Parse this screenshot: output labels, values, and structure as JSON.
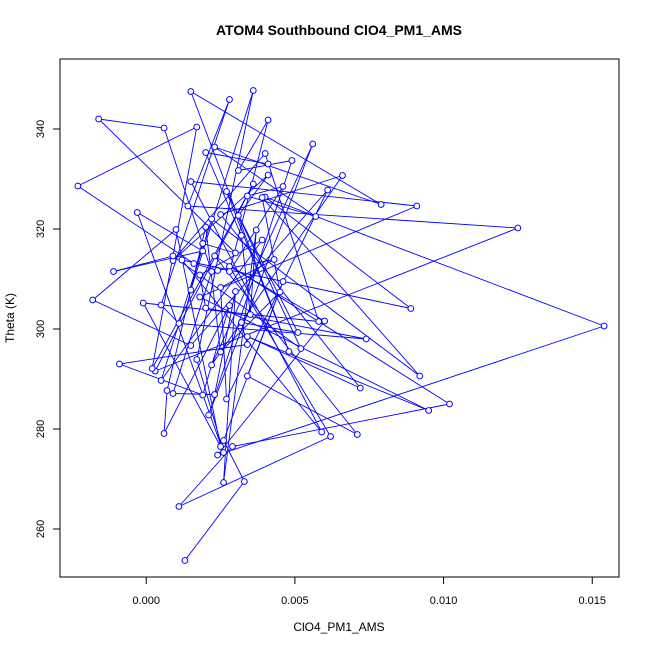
{
  "chart_data": {
    "type": "line",
    "style": "points-and-lines",
    "title": "ATOM4 Southbound ClO4_PM1_AMS",
    "xlabel": "ClO4_PM1_AMS",
    "ylabel": "Theta (K)",
    "xlim": [
      -0.0029,
      0.0159
    ],
    "ylim": [
      250.4,
      354.0
    ],
    "xticks": [
      0.0,
      0.005,
      0.01,
      0.015
    ],
    "xtick_labels": [
      "0.000",
      "0.005",
      "0.010",
      "0.015"
    ],
    "yticks": [
      260,
      280,
      300,
      320,
      340
    ],
    "ytick_labels": [
      "260",
      "280",
      "300",
      "320",
      "340"
    ],
    "grid": false,
    "legend": "none",
    "series": [
      {
        "color": "#0000ff",
        "x": [
          0.0013,
          0.0033,
          0.0026,
          0.0046,
          0.0034,
          0.0071,
          0.0023,
          0.0102,
          0.0029,
          0.0011,
          0.0062,
          0.0028,
          0.006,
          0.0024,
          0.0154,
          0.004,
          0.0089,
          0.0012,
          0.0059,
          0.0015,
          0.0091,
          0.0018,
          0.0095,
          0.0034,
          0.0072,
          0.0025,
          0.0066,
          0.0022,
          0.0056,
          0.0021,
          0.0049,
          0.0031,
          0.0041,
          0.0028,
          0.0046,
          0.0034,
          0.0057,
          0.0023,
          0.0079,
          0.0015,
          0.0048,
          0.0027,
          0.0051,
          0.0032,
          0.0034,
          -0.0009,
          0.0019,
          0.0028,
          0.0006,
          0.0007,
          0.002,
          0.0025,
          0.0045,
          0.0039,
          0.0092,
          0.0022,
          0.0005,
          0.0039,
          0.0018,
          0.002,
          0.0074,
          0.0011,
          0.0005,
          0.0028,
          0.0014,
          0.0125,
          0.0003,
          0.0036,
          0.0002,
          0.0017,
          -0.0023,
          0.0016,
          0.0024,
          0.0043,
          0.0025,
          0.0027,
          0.0061,
          0.0015,
          -0.0018,
          0.001,
          0.0025,
          -0.0001,
          0.0058,
          0.004,
          0.0009,
          0.0041,
          0.0031,
          0.0052,
          0.0009,
          -0.0011,
          0.0019,
          -0.0003,
          0.0026,
          0.0017,
          0.0036,
          0.0015,
          0.0019,
          0.003,
          -0.0016,
          0.0006,
          0.0022,
          0.0009,
          0.0023,
          0.003,
          0.0026,
          0.0037,
          0.0035,
          0.0032,
          0.002,
          0.0041
        ],
        "y": [
          253.7,
          269.5,
          277.7,
          309.5,
          290.6,
          278.9,
          314.6,
          285.0,
          276.5,
          264.5,
          278.5,
          312.5,
          301.6,
          274.8,
          300.6,
          326.4,
          304.1,
          313.8,
          279.4,
          329.5,
          324.6,
          306.4,
          283.7,
          298.5,
          288.2,
          322.9,
          330.7,
          292.8,
          337.0,
          282.8,
          333.7,
          331.7,
          341.8,
          311.5,
          328.5,
          326.6,
          322.5,
          336.4,
          324.9,
          347.5,
          295.5,
          327.5,
          299.3,
          301.3,
          296.9,
          293.0,
          286.8,
          304.7,
          279.1,
          287.7,
          320.4,
          295.4,
          307.4,
          326.3,
          290.6,
          322.0,
          289.7,
          317.8,
          310.8,
          304.2,
          298.0,
          301.1,
          304.8,
          345.9,
          324.6,
          320.2,
          291.6,
          329.0,
          292.1,
          340.4,
          328.6,
          313.1,
          311.7,
          313.9,
          308.3,
          286.0,
          327.8,
          296.7,
          305.8,
          319.9,
          276.5,
          305.2,
          301.5,
          335.1,
          313.7,
          330.8,
          322.7,
          296.1,
          314.6,
          311.5,
          315.6,
          323.3,
          275.3,
          293.9,
          347.7,
          307.8,
          317.1,
          315.2,
          342.0,
          340.2,
          311.5,
          287.1,
          286.9,
          307.5,
          269.3,
          319.8,
          302.9,
          318.7,
          335.3,
          333.0
        ]
      }
    ]
  }
}
